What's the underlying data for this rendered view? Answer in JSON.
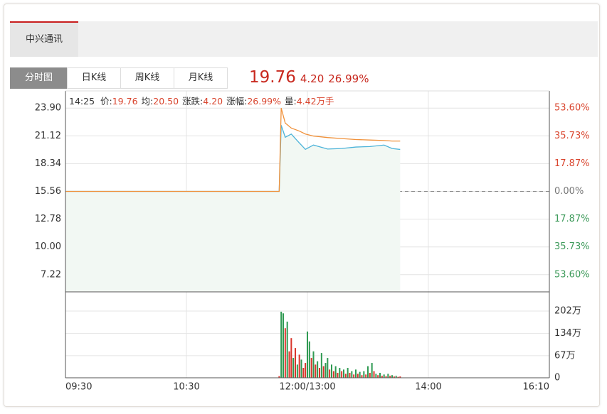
{
  "stock_tab": "中兴通讯",
  "view_tabs": [
    "分时图",
    "日K线",
    "周K线",
    "月K线"
  ],
  "quote": {
    "price": "19.76",
    "change": "4.20",
    "change_pct": "26.99%"
  },
  "info_bar": {
    "time": "14:25",
    "items": [
      {
        "label": "价:",
        "value": "19.76"
      },
      {
        "label": "均:",
        "value": "20.50"
      },
      {
        "label": "涨跌:",
        "value": "4.20"
      },
      {
        "label": "涨幅:",
        "value": "26.99%"
      },
      {
        "label": "量:",
        "value": "4.42万手"
      }
    ]
  },
  "chart_data": [
    {
      "type": "line",
      "x": [
        0,
        106,
        107,
        109,
        112,
        116,
        119,
        123,
        130,
        137,
        144,
        151,
        158,
        162,
        166
      ],
      "series": [
        {
          "color": "#4cb3d9",
          "values": [
            15.56,
            15.56,
            22.18,
            20.98,
            21.3,
            20.41,
            19.77,
            20.2,
            19.8,
            19.85,
            20.0,
            20.05,
            20.2,
            19.85,
            19.76
          ]
        },
        {
          "color": "#f0913a",
          "values": [
            15.56,
            15.56,
            23.9,
            22.4,
            21.9,
            21.6,
            21.3,
            21.1,
            20.95,
            20.85,
            20.75,
            20.7,
            20.65,
            20.6,
            20.6
          ]
        }
      ],
      "area_color": "#f2f8f3",
      "xlim": [
        0,
        240
      ],
      "ylim": [
        5.5,
        25.62
      ],
      "yticks": [
        {
          "value": 23.9,
          "label": "23.90"
        },
        21.12,
        18.34,
        15.56,
        12.78,
        {
          "value": 10,
          "label": "10.00"
        },
        7.22
      ],
      "y2lim": [
        -64.65,
        64.65
      ],
      "y2ticks": [
        {
          "value": 53.6,
          "label": "53.60%"
        },
        {
          "value": 35.73,
          "label": "35.73%"
        },
        {
          "value": 17.87,
          "label": "17.87%"
        },
        {
          "value": 0,
          "label": "0.00%"
        },
        {
          "value": -17.87,
          "label": "17.87%"
        },
        {
          "value": -35.73,
          "label": "35.73%"
        },
        {
          "value": -53.6,
          "label": "53.60%"
        }
      ],
      "grid": true
    },
    {
      "type": "bar",
      "x": [
        106,
        107,
        108,
        109,
        110,
        111,
        112,
        113,
        114,
        115,
        116,
        117,
        118,
        119,
        120,
        121,
        122,
        123,
        124,
        125,
        126,
        127,
        128,
        129,
        130,
        131,
        132,
        133,
        134,
        135,
        136,
        137,
        138,
        139,
        140,
        141,
        142,
        143,
        144,
        145,
        146,
        147,
        148,
        149,
        150,
        151,
        152,
        153,
        154,
        155,
        156,
        157,
        158,
        159,
        160,
        161,
        162,
        163,
        164,
        165,
        166
      ],
      "values": [
        5,
        200,
        195,
        150,
        170,
        80,
        120,
        60,
        90,
        40,
        70,
        55,
        30,
        45,
        140,
        110,
        60,
        80,
        40,
        50,
        30,
        75,
        35,
        45,
        60,
        25,
        40,
        20,
        35,
        15,
        30,
        20,
        25,
        12,
        30,
        15,
        20,
        10,
        25,
        12,
        18,
        8,
        20,
        10,
        35,
        15,
        45,
        20,
        12,
        8,
        15,
        6,
        10,
        5,
        12,
        6,
        8,
        4,
        6,
        3,
        4
      ],
      "colors": [
        "#d9352b",
        "#2f9a52",
        "#2f9a52",
        "#d9352b",
        "#2f9a52",
        "#d9352b",
        "#d9352b",
        "#2f9a52",
        "#d9352b",
        "#2f9a52",
        "#d9352b",
        "#2f9a52",
        "#d9352b",
        "#d9352b",
        "#2f9a52",
        "#2f9a52",
        "#d9352b",
        "#2f9a52",
        "#d9352b",
        "#2f9a52",
        "#d9352b",
        "#2f9a52",
        "#d9352b",
        "#2f9a52",
        "#2f9a52",
        "#d9352b",
        "#2f9a52",
        "#d9352b",
        "#2f9a52",
        "#d9352b",
        "#2f9a52",
        "#d9352b",
        "#2f9a52",
        "#d9352b",
        "#2f9a52",
        "#d9352b",
        "#2f9a52",
        "#d9352b",
        "#2f9a52",
        "#d9352b",
        "#2f9a52",
        "#d9352b",
        "#2f9a52",
        "#d9352b",
        "#2f9a52",
        "#d9352b",
        "#2f9a52",
        "#d9352b",
        "#2f9a52",
        "#d9352b",
        "#2f9a52",
        "#d9352b",
        "#2f9a52",
        "#d9352b",
        "#2f9a52",
        "#d9352b",
        "#2f9a52",
        "#d9352b",
        "#2f9a52",
        "#d9352b",
        "#d9352b"
      ],
      "xlim": [
        0,
        240
      ],
      "xticks": [
        {
          "value": 0,
          "label": "09:30"
        },
        {
          "value": 60,
          "label": "10:30"
        },
        {
          "value": 120,
          "label": "12:00/13:00"
        },
        {
          "value": 180,
          "label": "14:00"
        },
        {
          "value": 240,
          "label": "16:10"
        }
      ],
      "ylim": [
        0,
        260
      ],
      "yticks": [
        {
          "value": 202,
          "label": "202万"
        },
        {
          "value": 134,
          "label": "134万"
        },
        {
          "value": 67,
          "label": "67万"
        },
        0
      ],
      "grid": true
    }
  ]
}
